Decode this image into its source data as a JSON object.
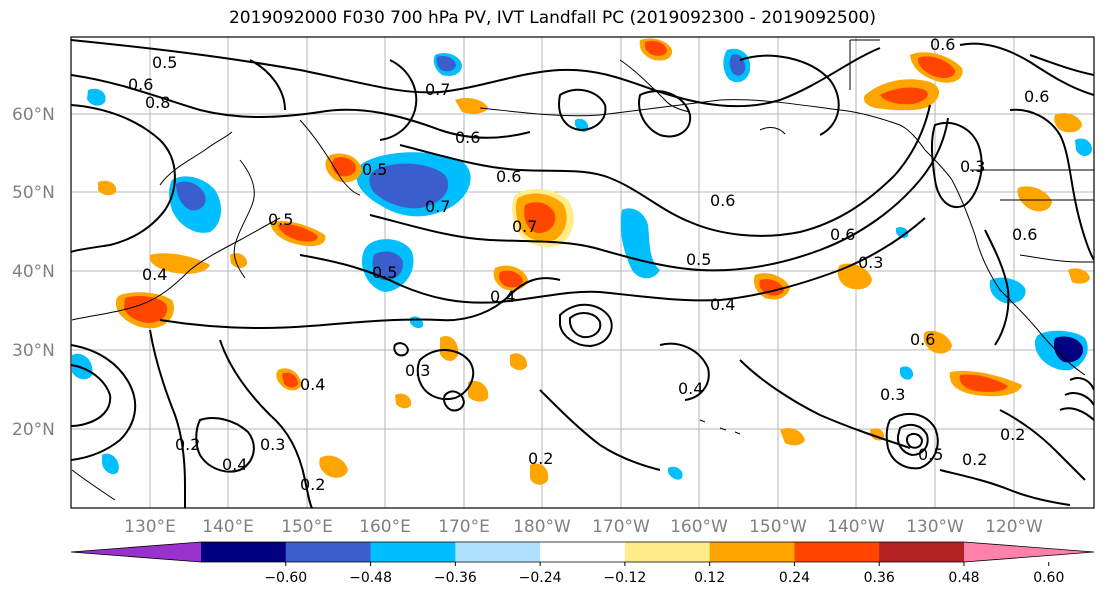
{
  "title": "2019092000 F030 700 hPa PV, IVT Landfall PC (2019092300 - 2019092500)",
  "lat_labels": [
    "60°N",
    "50°N",
    "40°N",
    "30°N",
    "20°N"
  ],
  "lon_labels": [
    "130°E",
    "140°E",
    "150°E",
    "160°E",
    "170°E",
    "180°W",
    "170°W",
    "160°W",
    "150°W",
    "140°W",
    "130°W",
    "120°W"
  ],
  "colorbar": {
    "ticks": [
      "−0.60",
      "−0.48",
      "−0.36",
      "−0.24",
      "−0.12",
      "0.12",
      "0.24",
      "0.36",
      "0.48",
      "0.60"
    ],
    "colors": [
      "#9932cc",
      "#000080",
      "#3a5fcd",
      "#00bfff",
      "#b0e2ff",
      "#ffffff",
      "#ffec8b",
      "#ffa500",
      "#ff4500",
      "#b22222",
      "#ff82ab"
    ]
  },
  "contour_labels": [
    "0.5",
    "0.6",
    "0.8",
    "0.7",
    "0.6",
    "0.6",
    "0.5",
    "0.6",
    "0.7",
    "0.6",
    "0.6",
    "0.5",
    "0.7",
    "0.6",
    "0.5",
    "0.4",
    "0.4",
    "0.5",
    "0.4",
    "0.3",
    "0.4",
    "0.6",
    "0.4",
    "0.6",
    "0.3",
    "0.2",
    "0.4",
    "0.3",
    "0.2",
    "0.2",
    "0.2",
    "0.3",
    "0.2",
    "0.5",
    "0.3"
  ]
}
